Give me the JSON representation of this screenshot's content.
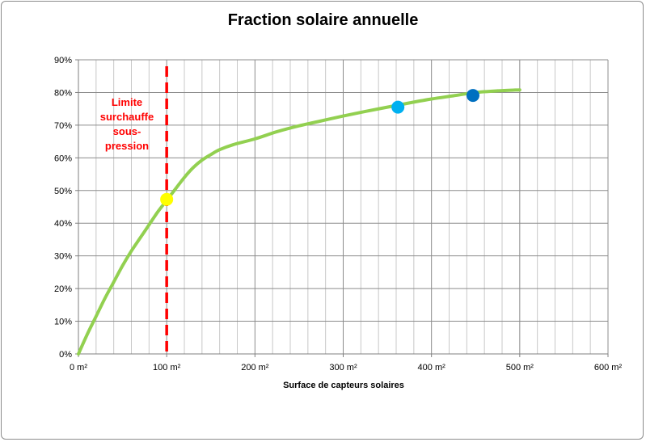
{
  "chart_data": {
    "type": "line",
    "title": "Fraction solaire annuelle",
    "xlabel": "Surface de capteurs solaires",
    "ylabel": "",
    "xlim": [
      0,
      600
    ],
    "ylim": [
      0,
      90
    ],
    "x_ticks": [
      0,
      100,
      200,
      300,
      400,
      500,
      600
    ],
    "x_tick_labels": [
      "0 m²",
      "100 m²",
      "200 m²",
      "300 m²",
      "400 m²",
      "500 m²",
      "600 m²"
    ],
    "y_ticks": [
      0,
      10,
      20,
      30,
      40,
      50,
      60,
      70,
      80,
      90
    ],
    "y_tick_labels": [
      "0%",
      "10%",
      "20%",
      "30%",
      "40%",
      "50%",
      "60%",
      "70%",
      "80%",
      "90%"
    ],
    "grid": true,
    "series": [
      {
        "color": "#92d050",
        "x": [
          0,
          10,
          20,
          30,
          40,
          50,
          60,
          70,
          80,
          90,
          100,
          110,
          120,
          130,
          140,
          150,
          160,
          175,
          200,
          225,
          250,
          275,
          300,
          325,
          350,
          375,
          400,
          425,
          450,
          475,
          500
        ],
        "y": [
          0,
          6,
          11.5,
          17,
          22,
          27,
          31.5,
          35.5,
          39.5,
          43.5,
          47,
          50.5,
          54,
          57,
          59.3,
          61,
          62.5,
          64,
          65.8,
          68,
          69.8,
          71.3,
          72.8,
          74.2,
          75.5,
          76.8,
          78,
          79,
          80,
          80.5,
          80.8
        ]
      }
    ],
    "markers": [
      {
        "x": 100,
        "y": 47.3,
        "color": "#ffff00"
      },
      {
        "x": 362,
        "y": 75.5,
        "color": "#00b0f0"
      },
      {
        "x": 447,
        "y": 79.1,
        "color": "#0070c0"
      }
    ],
    "vertical_line": {
      "x": 100,
      "color": "#ff0000",
      "label": [
        "Limite",
        "surchauffe",
        "sous-",
        "pression"
      ]
    }
  }
}
